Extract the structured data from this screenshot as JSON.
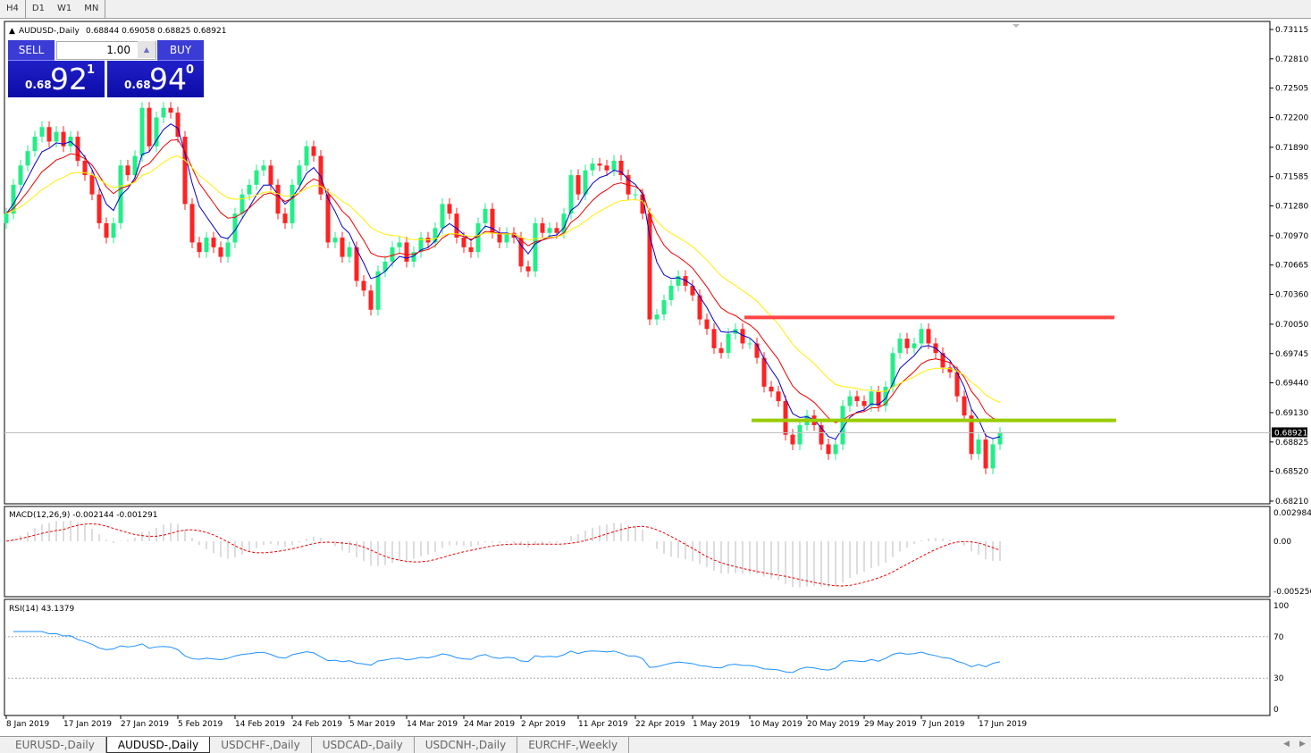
{
  "timeframes": [
    {
      "label": "H4",
      "active": false
    },
    {
      "label": "D1",
      "active": true
    },
    {
      "label": "W1",
      "active": false
    },
    {
      "label": "MN",
      "active": false
    }
  ],
  "chart": {
    "title": "AUDUSD-,Daily",
    "ohlc_text": "0.68844 0.69058 0.68825 0.68921",
    "price_ticks": [
      "0.73115",
      "0.72810",
      "0.72505",
      "0.72200",
      "0.71890",
      "0.71585",
      "0.71280",
      "0.70970",
      "0.70665",
      "0.70360",
      "0.70050",
      "0.69745",
      "0.69440",
      "0.69130",
      "0.68825",
      "0.68520",
      "0.68210"
    ],
    "current_price": "0.68921",
    "colors": {
      "bull": "#22ee88",
      "bear": "#ff2222",
      "ma_fast": "#0000cc",
      "ma_mid": "#ee0000",
      "ma_slow": "#ffee00",
      "resistance": "#ff4444",
      "support": "#99cc00"
    },
    "resistance_level": 0.7012,
    "support_level": 0.6905,
    "closes": [
      0.712,
      0.715,
      0.717,
      0.7185,
      0.72,
      0.721,
      0.7195,
      0.7205,
      0.719,
      0.72,
      0.7175,
      0.716,
      0.714,
      0.711,
      0.7095,
      0.711,
      0.717,
      0.716,
      0.718,
      0.723,
      0.719,
      0.722,
      0.723,
      0.7225,
      0.72,
      0.713,
      0.709,
      0.708,
      0.7095,
      0.7085,
      0.7075,
      0.709,
      0.712,
      0.714,
      0.715,
      0.7165,
      0.717,
      0.715,
      0.712,
      0.711,
      0.715,
      0.717,
      0.719,
      0.718,
      0.714,
      0.709,
      0.7095,
      0.7075,
      0.7085,
      0.705,
      0.704,
      0.702,
      0.706,
      0.707,
      0.7085,
      0.709,
      0.707,
      0.708,
      0.7095,
      0.709,
      0.7105,
      0.713,
      0.712,
      0.7095,
      0.7085,
      0.708,
      0.711,
      0.7125,
      0.71,
      0.709,
      0.71,
      0.7095,
      0.7065,
      0.706,
      0.711,
      0.71,
      0.7105,
      0.71,
      0.712,
      0.716,
      0.714,
      0.7165,
      0.7172,
      0.717,
      0.7165,
      0.7175,
      0.716,
      0.714,
      0.714,
      0.712,
      0.701,
      0.7015,
      0.703,
      0.7045,
      0.7055,
      0.7045,
      0.7035,
      0.701,
      0.7,
      0.698,
      0.6975,
      0.6995,
      0.7,
      0.6985,
      0.6985,
      0.697,
      0.694,
      0.6935,
      0.6925,
      0.689,
      0.688,
      0.69,
      0.691,
      0.69,
      0.688,
      0.687,
      0.688,
      0.692,
      0.693,
      0.6925,
      0.692,
      0.6935,
      0.692,
      0.694,
      0.6975,
      0.699,
      0.698,
      0.6985,
      0.7,
      0.6985,
      0.6975,
      0.696,
      0.6955,
      0.693,
      0.691,
      0.687,
      0.6885,
      0.6855,
      0.688,
      0.6892
    ],
    "date_labels": [
      "8 Jan 2019",
      "17 Jan 2019",
      "27 Jan 2019",
      "5 Feb 2019",
      "14 Feb 2019",
      "24 Feb 2019",
      "5 Mar 2019",
      "14 Mar 2019",
      "24 Mar 2019",
      "2 Apr 2019",
      "11 Apr 2019",
      "22 Apr 2019",
      "1 May 2019",
      "10 May 2019",
      "20 May 2019",
      "29 May 2019",
      "7 Jun 2019",
      "17 Jun 2019"
    ]
  },
  "trade": {
    "sell_label": "SELL",
    "buy_label": "BUY",
    "lot": "1.00",
    "sell_prefix": "0.68",
    "sell_big": "92",
    "sell_sup": "1",
    "buy_prefix": "0.68",
    "buy_big": "94",
    "buy_sup": "0"
  },
  "macd": {
    "label": "MACD(12,26,9) -0.002144 -0.001291",
    "ticks": [
      "0.002984",
      "0.00",
      "-0.005256"
    ]
  },
  "rsi": {
    "label": "RSI(14) 43.1379",
    "ticks": [
      "100",
      "70",
      "30",
      "0"
    ]
  },
  "tabs": [
    {
      "label": "EURUSD-,Daily",
      "active": false
    },
    {
      "label": "AUDUSD-,Daily",
      "active": true
    },
    {
      "label": "USDCHF-,Daily",
      "active": false
    },
    {
      "label": "USDCAD-,Daily",
      "active": false
    },
    {
      "label": "USDCNH-,Daily",
      "active": false
    },
    {
      "label": "EURCHF-,Weekly",
      "active": false
    }
  ]
}
